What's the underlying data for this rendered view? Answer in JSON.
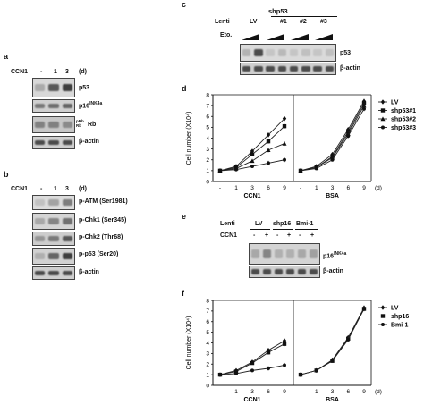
{
  "panel_a": {
    "label": "a",
    "ccn1": "CCN1",
    "lanes": [
      "-",
      "1",
      "3"
    ],
    "unit": "(d)",
    "blots": [
      {
        "name": "p53",
        "sup": "",
        "bg": "#d8d8d8",
        "intensities": [
          0.35,
          0.75,
          0.85
        ]
      },
      {
        "name": "p16",
        "sup": "INK4a",
        "bg": "#d0d0d0",
        "intensities": [
          0.6,
          0.65,
          0.7
        ]
      },
      {
        "name": "Rb",
        "sup": "",
        "bg": "#c7c7c7",
        "intensities": [
          0.55,
          0.55,
          0.5
        ]
      },
      {
        "name": "β-actin",
        "sup": "",
        "bg": "#cfcfcf",
        "intensities": [
          0.8,
          0.8,
          0.8
        ]
      }
    ],
    "rb_marks": [
      "pRb",
      "Rb"
    ]
  },
  "panel_b": {
    "label": "b",
    "ccn1": "CCN1",
    "lanes": [
      "-",
      "1",
      "3"
    ],
    "unit": "(d)",
    "blots": [
      {
        "name": "p-ATM (Ser1981)",
        "bg": "#dcdcdc",
        "intensities": [
          0.2,
          0.4,
          0.6
        ]
      },
      {
        "name": "p-Chk1 (Ser345)",
        "bg": "#d5d5d5",
        "intensities": [
          0.35,
          0.55,
          0.65
        ]
      },
      {
        "name": "p-Chk2 (Thr68)",
        "bg": "#cdcdcd",
        "intensities": [
          0.45,
          0.6,
          0.75
        ]
      },
      {
        "name": "p-p53 (Ser20)",
        "bg": "#d2d2d2",
        "intensities": [
          0.3,
          0.7,
          0.85
        ]
      },
      {
        "name": "β-actin",
        "bg": "#cfcfcf",
        "intensities": [
          0.8,
          0.8,
          0.8
        ]
      }
    ]
  },
  "panel_c": {
    "label": "c",
    "header": "shp53",
    "lenti": "Lenti",
    "groups": [
      "LV",
      "#1",
      "#2",
      "#3"
    ],
    "eto": "Eto.",
    "blots": [
      {
        "name": "p53",
        "bg": "#dadada",
        "intensities": [
          0.3,
          0.8,
          0.15,
          0.25,
          0.15,
          0.2,
          0.15,
          0.2
        ]
      },
      {
        "name": "β-actin",
        "bg": "#cfcfcf",
        "intensities": [
          0.8,
          0.8,
          0.8,
          0.8,
          0.8,
          0.8,
          0.8,
          0.8
        ]
      }
    ]
  },
  "panel_d": {
    "label": "d",
    "chart_data": {
      "type": "line",
      "ylabel": "Cell number (X10⁴)",
      "ylim": [
        0,
        8
      ],
      "yticks": [
        "0",
        "1",
        "2",
        "3",
        "4",
        "5",
        "6",
        "7",
        "8"
      ],
      "categories": [
        "-",
        "1",
        "3",
        "6",
        "9"
      ],
      "unit": "(d)",
      "groups": [
        "CCN1",
        "BSA"
      ],
      "legend": [
        "LV",
        "shp53#1",
        "shp53#2",
        "shp53#3"
      ],
      "series": [
        {
          "name": "LV",
          "marker": "diamond",
          "ccn1": [
            1.0,
            1.4,
            2.8,
            4.3,
            5.8
          ],
          "bsa": [
            1.0,
            1.4,
            2.5,
            4.8,
            7.4
          ]
        },
        {
          "name": "shp53#1",
          "marker": "square",
          "ccn1": [
            1.0,
            1.3,
            2.5,
            3.7,
            5.1
          ],
          "bsa": [
            1.0,
            1.3,
            2.3,
            4.6,
            7.2
          ]
        },
        {
          "name": "shp53#2",
          "marker": "triangle",
          "ccn1": [
            1.0,
            1.2,
            1.9,
            2.9,
            3.5
          ],
          "bsa": [
            1.0,
            1.3,
            2.2,
            4.4,
            7.0
          ]
        },
        {
          "name": "shp53#3",
          "marker": "circle",
          "ccn1": [
            1.0,
            1.1,
            1.4,
            1.7,
            2.0
          ],
          "bsa": [
            1.0,
            1.2,
            2.0,
            4.2,
            6.7
          ]
        }
      ]
    }
  },
  "panel_e": {
    "label": "e",
    "lenti": "Lenti",
    "groups": [
      "LV",
      "shp16",
      "Bmi-1"
    ],
    "ccn1": "CCN1",
    "lanes": [
      "-",
      "+",
      "-",
      "+",
      "-",
      "+"
    ],
    "blots": [
      {
        "name": "p16",
        "sup": "INK4a",
        "bg": "#d4d4d4",
        "intensities": [
          0.35,
          0.55,
          0.3,
          0.3,
          0.35,
          0.4
        ]
      },
      {
        "name": "β-actin",
        "sup": "",
        "bg": "#cfcfcf",
        "intensities": [
          0.8,
          0.8,
          0.8,
          0.8,
          0.8,
          0.8
        ]
      }
    ]
  },
  "panel_f": {
    "label": "f",
    "chart_data": {
      "type": "line",
      "ylabel": "Cell number (X10⁴)",
      "ylim": [
        0,
        8
      ],
      "yticks": [
        "0",
        "1",
        "2",
        "3",
        "4",
        "5",
        "6",
        "7",
        "8"
      ],
      "categories": [
        "-",
        "1",
        "3",
        "6",
        "9"
      ],
      "unit": "(d)",
      "groups": [
        "CCN1",
        "BSA"
      ],
      "legend": [
        "LV",
        "shp16",
        "Bmi-1"
      ],
      "series": [
        {
          "name": "LV",
          "marker": "diamond",
          "ccn1": [
            1.0,
            1.4,
            2.2,
            3.3,
            4.2
          ],
          "bsa": [
            1.0,
            1.4,
            2.4,
            4.5,
            7.3
          ]
        },
        {
          "name": "shp16",
          "marker": "square",
          "ccn1": [
            1.0,
            1.3,
            2.1,
            3.1,
            3.9
          ],
          "bsa": [
            1.0,
            1.4,
            2.3,
            4.4,
            7.2
          ]
        },
        {
          "name": "Bmi-1",
          "marker": "circle",
          "ccn1": [
            1.0,
            1.1,
            1.4,
            1.6,
            1.9
          ],
          "bsa": [
            1.0,
            1.4,
            2.3,
            4.3,
            7.2
          ]
        }
      ]
    }
  }
}
